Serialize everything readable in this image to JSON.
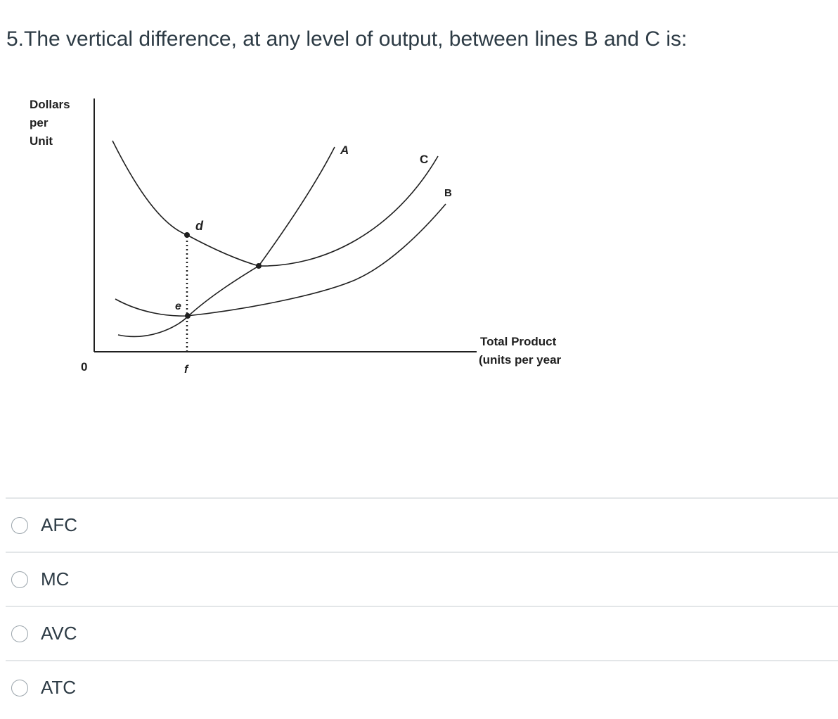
{
  "question": {
    "text": "5.The vertical difference, at any level of output, between lines B and C is:"
  },
  "figure": {
    "y_axis_label": [
      "Dollars",
      "per",
      "Unit"
    ],
    "x_axis_label": [
      "Total Product",
      "(units per year"
    ],
    "origin_label": "0",
    "curve_labels": {
      "A": "A",
      "B": "B",
      "C": "C"
    },
    "point_labels": {
      "d": "d",
      "e": "e",
      "f": "f"
    }
  },
  "answers": [
    {
      "label": "AFC",
      "selected": false
    },
    {
      "label": "MC",
      "selected": false
    },
    {
      "label": "AVC",
      "selected": false
    },
    {
      "label": "ATC",
      "selected": false
    }
  ],
  "colors": {
    "text": "#2d3b45",
    "divider": "#e3e6e8",
    "curve": "#1f1f1f"
  }
}
